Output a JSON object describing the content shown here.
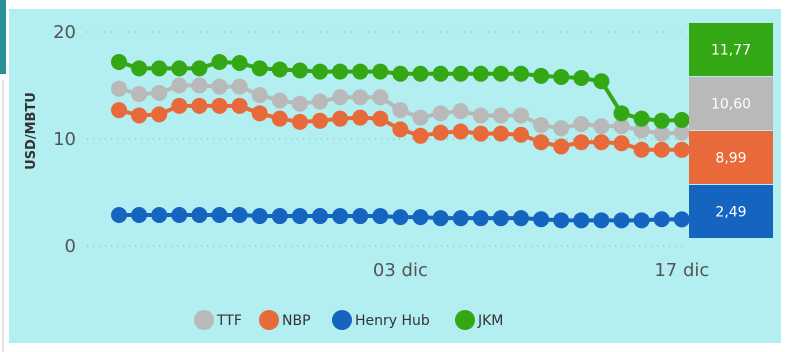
{
  "chart_data": {
    "type": "line",
    "title": "",
    "xlabel": "",
    "ylabel": "USD/MBTU",
    "ylim": [
      0,
      20
    ],
    "yticks": [
      "0",
      "10",
      "20"
    ],
    "xtick_labels": [
      {
        "index": 14,
        "label": "03 dic"
      },
      {
        "index": 28,
        "label": "17 dic"
      }
    ],
    "grid": true,
    "legend_position": "bottom",
    "series": [
      {
        "name": "TTF",
        "color": "#b9b9b9",
        "values": [
          14.7,
          14.2,
          14.3,
          15.0,
          15.0,
          14.9,
          14.9,
          14.1,
          13.6,
          13.3,
          13.5,
          13.9,
          13.9,
          13.9,
          12.7,
          12.0,
          12.4,
          12.6,
          12.2,
          12.2,
          12.2,
          11.3,
          11.0,
          11.4,
          11.2,
          11.2,
          10.8,
          10.5,
          10.6
        ]
      },
      {
        "name": "NBP",
        "color": "#e8693a",
        "values": [
          12.7,
          12.2,
          12.3,
          13.1,
          13.1,
          13.1,
          13.1,
          12.4,
          11.9,
          11.6,
          11.7,
          11.9,
          12.0,
          11.9,
          10.9,
          10.3,
          10.6,
          10.7,
          10.5,
          10.5,
          10.4,
          9.7,
          9.3,
          9.7,
          9.7,
          9.6,
          9.0,
          9.0,
          8.99
        ]
      },
      {
        "name": "Henry Hub",
        "color": "#1565c0",
        "values": [
          2.9,
          2.9,
          2.9,
          2.9,
          2.9,
          2.9,
          2.9,
          2.8,
          2.8,
          2.8,
          2.8,
          2.8,
          2.8,
          2.8,
          2.7,
          2.7,
          2.6,
          2.6,
          2.6,
          2.6,
          2.6,
          2.5,
          2.4,
          2.4,
          2.4,
          2.4,
          2.4,
          2.5,
          2.49
        ]
      },
      {
        "name": "JKM",
        "color": "#34a715",
        "values": [
          17.2,
          16.6,
          16.6,
          16.6,
          16.6,
          17.2,
          17.1,
          16.6,
          16.5,
          16.4,
          16.3,
          16.3,
          16.3,
          16.3,
          16.1,
          16.1,
          16.1,
          16.1,
          16.1,
          16.1,
          16.1,
          15.9,
          15.8,
          15.7,
          15.4,
          12.4,
          11.9,
          11.7,
          11.77
        ]
      }
    ],
    "end_labels": [
      {
        "series": "JKM",
        "text": "11,77",
        "color": "#34a715"
      },
      {
        "series": "TTF",
        "text": "10,60",
        "color": "#b9b9b9"
      },
      {
        "series": "NBP",
        "text": "8,99",
        "color": "#e8693a"
      },
      {
        "series": "Henry Hub",
        "text": "2,49",
        "color": "#1565c0"
      }
    ]
  }
}
